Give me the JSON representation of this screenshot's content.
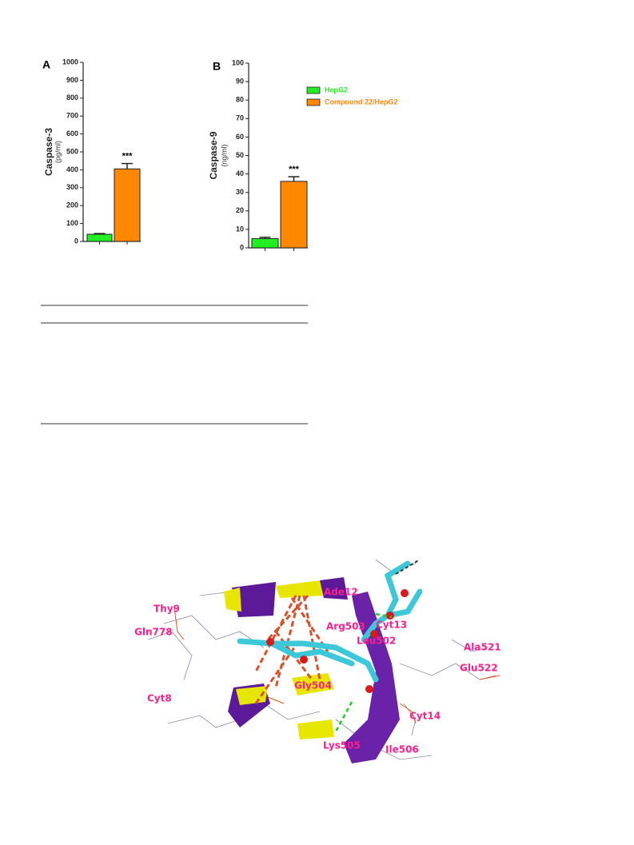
{
  "chart_data": [
    {
      "type": "bar",
      "panel": "A",
      "y_label": "Caspase-3",
      "y_unit": "(pg/ml)",
      "values": [
        40,
        405
      ],
      "errors": [
        4,
        30
      ],
      "colors": [
        "#22ee22",
        "#ff8800"
      ],
      "annotation": "***",
      "ylim": [
        0,
        1000
      ],
      "yticks": [
        0,
        100,
        200,
        300,
        400,
        500,
        600,
        700,
        800,
        900,
        1000
      ]
    },
    {
      "type": "bar",
      "panel": "B",
      "y_label": "Caspase-9",
      "y_unit": "(ng/ml)",
      "values": [
        5,
        36
      ],
      "errors": [
        0.7,
        2.5
      ],
      "colors": [
        "#22ee22",
        "#ff8800"
      ],
      "annotation": "***",
      "ylim": [
        0,
        100
      ],
      "yticks": [
        0,
        10,
        20,
        30,
        40,
        50,
        60,
        70,
        80,
        90,
        100
      ],
      "legend": [
        {
          "label": "HepG2",
          "color": "#22ee22"
        },
        {
          "label": "Compound 22/HepG2",
          "color": "#ff8800"
        }
      ]
    }
  ],
  "docking_labels": [
    "Thy9",
    "Gln778",
    "Ade12",
    "Arg503",
    "Cyt13",
    "Leu502",
    "Ala521",
    "Glu522",
    "Gly504",
    "Cyt8",
    "Cyt14",
    "Lys505",
    "Ile506"
  ]
}
